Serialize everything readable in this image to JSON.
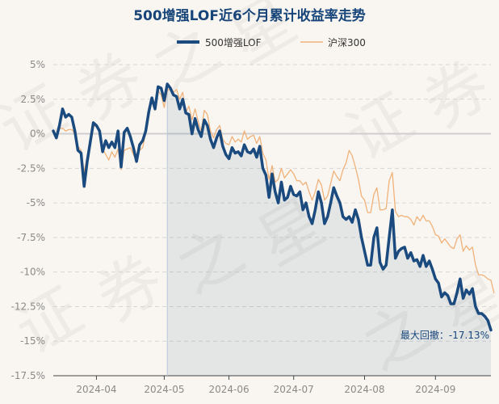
{
  "chart_data": {
    "type": "line",
    "title": "500增强LOF近6个月累计收益率走势",
    "watermark": "证券之星",
    "ylim": [
      -17.5,
      5
    ],
    "y_ticks": [
      {
        "value": 5,
        "label": "5%"
      },
      {
        "value": 2.5,
        "label": "2.5%"
      },
      {
        "value": 0,
        "label": "0%"
      },
      {
        "value": -2.5,
        "label": "-2.5%"
      },
      {
        "value": -5,
        "label": "-5%"
      },
      {
        "value": -7.5,
        "label": "-7.5%"
      },
      {
        "value": -10,
        "label": "-10%"
      },
      {
        "value": -12.5,
        "label": "-12.5%"
      },
      {
        "value": -15,
        "label": "-15%"
      },
      {
        "value": -17.5,
        "label": "-17.5%"
      }
    ],
    "x_ticks": [
      {
        "index": 14,
        "label": "2024-04"
      },
      {
        "index": 36,
        "label": "2024-05"
      },
      {
        "index": 57,
        "label": "2024-06"
      },
      {
        "index": 78,
        "label": "2024-07"
      },
      {
        "index": 101,
        "label": "2024-08"
      },
      {
        "index": 124,
        "label": "2024-09"
      }
    ],
    "grid": true,
    "legend_position": "top",
    "series": [
      {
        "name": "500增强LOF",
        "color": "#1a4a7e",
        "values": [
          0.2,
          -0.3,
          0.6,
          1.8,
          1.2,
          1.4,
          1.2,
          0.2,
          -1.2,
          -1.4,
          -3.8,
          -2.0,
          -0.6,
          0.8,
          0.6,
          0.2,
          -1.3,
          -0.5,
          -1.0,
          -0.6,
          -1.0,
          0.2,
          -2.4,
          0.1,
          0.4,
          -0.2,
          -1.0,
          -2.0,
          -0.8,
          -0.5,
          0.2,
          1.6,
          2.6,
          1.8,
          3.4,
          3.3,
          2.4,
          3.6,
          3.3,
          2.8,
          2.7,
          1.8,
          2.5,
          1.5,
          1.4,
          0.0,
          1.1,
          0.3,
          -0.2,
          1.0,
          0.6,
          -0.4,
          -1.0,
          -0.3,
          0.2,
          -0.9,
          -1.5,
          -1.8,
          -1.0,
          -1.4,
          -1.3,
          -1.6,
          -0.8,
          -1.3,
          -1.4,
          -1.1,
          -1.7,
          -0.9,
          -2.5,
          -3.0,
          -4.6,
          -2.9,
          -4.2,
          -5.0,
          -3.5,
          -4.8,
          -4.6,
          -3.8,
          -4.4,
          -4.5,
          -4.2,
          -5.5,
          -5.0,
          -6.0,
          -6.5,
          -5.5,
          -4.2,
          -5.0,
          -6.5,
          -6.0,
          -5.0,
          -3.9,
          -4.5,
          -5.0,
          -6.0,
          -6.2,
          -6.0,
          -6.4,
          -5.5,
          -6.2,
          -7.5,
          -8.5,
          -9.5,
          -9.5,
          -7.5,
          -6.8,
          -9.3,
          -9.8,
          -9.5,
          -7.5,
          -5.5,
          -9.0,
          -8.5,
          -8.3,
          -8.2,
          -9.0,
          -8.6,
          -9.2,
          -9.1,
          -9.6,
          -8.8,
          -9.6,
          -9.2,
          -9.8,
          -10.5,
          -10.8,
          -11.8,
          -11.5,
          -11.7,
          -12.3,
          -12.3,
          -11.5,
          -10.5,
          -11.9,
          -11.3,
          -11.6,
          -11.2,
          -12.5,
          -13.0,
          -13.0,
          -13.2,
          -13.5,
          -14.2
        ]
      },
      {
        "name": "沪深300",
        "color": "#f0b27a",
        "values": [
          0.2,
          -0.2,
          0.4,
          0.4,
          0.2,
          0.3,
          0.3,
          0.0,
          -0.9,
          -1.2,
          -2.8,
          -1.6,
          -0.6,
          0.6,
          0.5,
          0.3,
          -1.1,
          -1.5,
          -1.9,
          -1.3,
          -1.7,
          -1.1,
          -2.6,
          -1.2,
          -1.1,
          -1.0,
          -1.5,
          -2.0,
          -1.2,
          -1.0,
          0.1,
          1.7,
          2.3,
          1.7,
          3.1,
          2.8,
          1.9,
          3.1,
          3.3,
          3.0,
          3.2,
          2.5,
          3.0,
          1.5,
          2.0,
          1.0,
          1.8,
          0.9,
          0.2,
          1.7,
          1.4,
          0.2,
          -0.3,
          0.3,
          0.6,
          -0.4,
          -0.7,
          -0.8,
          -0.2,
          -0.6,
          -0.4,
          -0.6,
          0.2,
          -0.4,
          -0.2,
          -0.1,
          -0.7,
          -0.2,
          -1.4,
          -1.9,
          -3.3,
          -2.3,
          -3.5,
          -3.3,
          -2.5,
          -3.2,
          -2.9,
          -2.6,
          -2.9,
          -3.4,
          -3.4,
          -3.7,
          -3.5,
          -4.2,
          -4.8,
          -4.2,
          -3.3,
          -3.7,
          -4.8,
          -4.5,
          -3.6,
          -2.7,
          -3.1,
          -3.4,
          -2.6,
          -2.1,
          -1.2,
          -1.6,
          -2.4,
          -3.3,
          -4.5,
          -4.8,
          -5.7,
          -5.7,
          -4.4,
          -3.9,
          -5.5,
          -5.5,
          -5.4,
          -3.4,
          -2.8,
          -5.6,
          -6.0,
          -5.9,
          -6.0,
          -6.0,
          -6.2,
          -6.6,
          -6.0,
          -6.3,
          -5.9,
          -6.3,
          -6.3,
          -6.7,
          -7.3,
          -7.4,
          -7.9,
          -7.6,
          -7.9,
          -8.2,
          -8.3,
          -7.6,
          -7.3,
          -8.5,
          -8.1,
          -8.4,
          -8.2,
          -9.5,
          -10.2,
          -10.2,
          -10.3,
          -10.5,
          -10.6,
          -11.5
        ]
      }
    ],
    "annotation": {
      "text": "最大回撤：-17.13%",
      "shade_start_index": 37
    }
  }
}
